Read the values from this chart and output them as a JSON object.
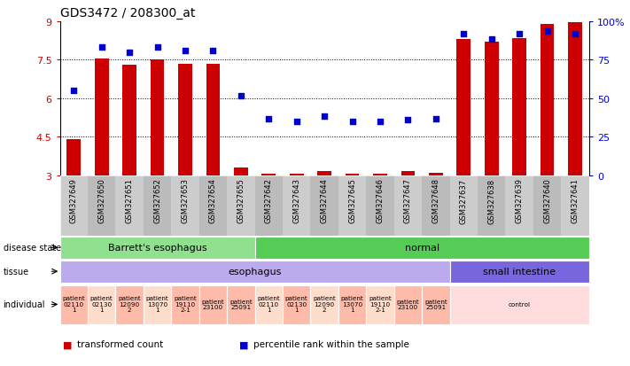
{
  "title": "GDS3472 / 208300_at",
  "samples": [
    "GSM327649",
    "GSM327650",
    "GSM327651",
    "GSM327652",
    "GSM327653",
    "GSM327654",
    "GSM327655",
    "GSM327642",
    "GSM327643",
    "GSM327644",
    "GSM327645",
    "GSM327646",
    "GSM327647",
    "GSM327648",
    "GSM327637",
    "GSM327638",
    "GSM327639",
    "GSM327640",
    "GSM327641"
  ],
  "bar_values": [
    4.4,
    7.55,
    7.3,
    7.5,
    7.35,
    7.35,
    3.3,
    3.05,
    3.05,
    3.15,
    3.05,
    3.05,
    3.15,
    3.1,
    8.3,
    8.2,
    8.35,
    8.9,
    8.95
  ],
  "dot_values": [
    6.3,
    8.0,
    7.8,
    8.0,
    7.85,
    7.85,
    6.1,
    5.2,
    5.1,
    5.3,
    5.1,
    5.1,
    5.15,
    5.2,
    8.5,
    8.3,
    8.5,
    8.6,
    8.5
  ],
  "ylim": [
    3.0,
    9.0
  ],
  "yticks": [
    3.0,
    4.5,
    6.0,
    7.5,
    9.0
  ],
  "ytick_labels": [
    "3",
    "4.5",
    "6",
    "7.5",
    "9"
  ],
  "right_yticks": [
    0,
    25,
    50,
    75,
    100
  ],
  "right_ytick_labels": [
    "0",
    "25",
    "50",
    "75",
    "100%"
  ],
  "hlines": [
    4.5,
    6.0,
    7.5
  ],
  "bar_color": "#cc0000",
  "dot_color": "#0000cc",
  "bar_bottom": 3.0,
  "disease_state_groups": [
    {
      "label": "Barrett's esophagus",
      "start": 0,
      "end": 7,
      "color": "#90e090"
    },
    {
      "label": "normal",
      "start": 7,
      "end": 19,
      "color": "#55cc55"
    }
  ],
  "tissue_groups": [
    {
      "label": "esophagus",
      "start": 0,
      "end": 14,
      "color": "#bbaaee"
    },
    {
      "label": "small intestine",
      "start": 14,
      "end": 19,
      "color": "#7766dd"
    }
  ],
  "individual_cells": [
    {
      "label": "patient\n02110\n1",
      "start": 0,
      "end": 1,
      "color": "#ffbbaa"
    },
    {
      "label": "patient\n02130\n1",
      "start": 1,
      "end": 2,
      "color": "#ffddcc"
    },
    {
      "label": "patient\n12090\n2",
      "start": 2,
      "end": 3,
      "color": "#ffbbaa"
    },
    {
      "label": "patient\n13070\n1",
      "start": 3,
      "end": 4,
      "color": "#ffddcc"
    },
    {
      "label": "patient\n19110\n2-1",
      "start": 4,
      "end": 5,
      "color": "#ffbbaa"
    },
    {
      "label": "patient\n23100",
      "start": 5,
      "end": 6,
      "color": "#ffbbaa"
    },
    {
      "label": "patient\n25091",
      "start": 6,
      "end": 7,
      "color": "#ffbbaa"
    },
    {
      "label": "patient\n02110\n1",
      "start": 7,
      "end": 8,
      "color": "#ffddcc"
    },
    {
      "label": "patient\n02130\n1",
      "start": 8,
      "end": 9,
      "color": "#ffbbaa"
    },
    {
      "label": "patient\n12090\n2",
      "start": 9,
      "end": 10,
      "color": "#ffddcc"
    },
    {
      "label": "patient\n13070\n1",
      "start": 10,
      "end": 11,
      "color": "#ffbbaa"
    },
    {
      "label": "patient\n19110\n2-1",
      "start": 11,
      "end": 12,
      "color": "#ffddcc"
    },
    {
      "label": "patient\n23100",
      "start": 12,
      "end": 13,
      "color": "#ffbbaa"
    },
    {
      "label": "patient\n25091",
      "start": 13,
      "end": 14,
      "color": "#ffbbaa"
    },
    {
      "label": "control",
      "start": 14,
      "end": 19,
      "color": "#ffdddd"
    }
  ],
  "legend_items": [
    {
      "color": "#cc0000",
      "label": "transformed count"
    },
    {
      "color": "#0000cc",
      "label": "percentile rank within the sample"
    }
  ],
  "left_label_color": "#cc0000",
  "right_label_color": "#0000cc",
  "sample_label_bg": "#cccccc"
}
